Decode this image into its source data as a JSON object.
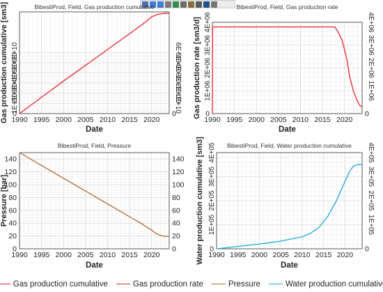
{
  "toolbar": {
    "icons": [
      "cursor-icon",
      "zoom-in-icon",
      "zoom-out-icon",
      "pan-icon",
      "fit-icon",
      "print-icon",
      "table-icon",
      "grid-icon",
      "options-icon",
      "menu-icon"
    ],
    "icon_colors": [
      "#4a6fb5",
      "#3b7dd8",
      "#3b7dd8",
      "#7a7a7a",
      "#2f8f4e",
      "#6b6b6b",
      "#8a6d3b",
      "#5a5a5a",
      "#1f4f8f",
      "#777777"
    ]
  },
  "colors": {
    "gas_cum": "#e8212b",
    "gas_rate": "#e8212b",
    "pressure": "#b5652a",
    "water_cum": "#1aa6dc",
    "grid": "#d9d9d9",
    "axis": "#333333"
  },
  "legend": [
    {
      "label": "Gas production cumulative",
      "color": "#e8212b"
    },
    {
      "label": "Gas production rate",
      "color": "#c0392b"
    },
    {
      "label": "Pressure",
      "color": "#b5652a"
    },
    {
      "label": "Water production cumulative",
      "color": "#1aa6dc"
    }
  ],
  "chart_data": [
    {
      "type": "line",
      "title": "BibestiProd, Field, Gas production cumulative",
      "xlabel": "Date",
      "ylabel": "Gas production cumulative [sm3]",
      "xlim": [
        1990,
        2024
      ],
      "ylim": [
        0,
        100000000000.0
      ],
      "xticks": [
        "1990",
        "1995",
        "2000",
        "2005",
        "2010",
        "2015",
        "2020"
      ],
      "yticks": [
        "0",
        "1E+10",
        "2E+10",
        "3E+10",
        "4E+10",
        "5E+10",
        "6E+10"
      ],
      "grid": true,
      "series": [
        {
          "x": [
            1990,
            1995,
            2000,
            2005,
            2010,
            2015,
            2018,
            2020,
            2021,
            2022,
            2023,
            2024
          ],
          "y": [
            0,
            16000000000.0,
            32000000000.0,
            47500000000.0,
            63000000000.0,
            78500000000.0,
            88000000000.0,
            95000000000.0,
            97000000000.0,
            98000000000.0,
            98500000000.0,
            98700000000.0
          ]
        }
      ]
    },
    {
      "type": "line",
      "title": "BibestiProd, Field, Gas production rate",
      "xlabel": "Date",
      "ylabel": "Gas production rate [sm3/d]",
      "xlim": [
        1990,
        2024
      ],
      "ylim": [
        0,
        4000000.0
      ],
      "xticks": [
        "1990",
        "1995",
        "2000",
        "2005",
        "2010",
        "2015",
        "2020"
      ],
      "yticks": [
        "0",
        "1E+06",
        "2E+06",
        "3E+06",
        "4E+06"
      ],
      "grid": true,
      "series": [
        {
          "x": [
            1990,
            1990.05,
            2017.8,
            2018.5,
            2019.5,
            2020.5,
            2021.2,
            2022,
            2022.8,
            2023.5,
            2024
          ],
          "y": [
            0,
            3800000.0,
            3800000.0,
            3600000.0,
            3200000.0,
            2400000.0,
            1600000.0,
            1000000.0,
            600000.0,
            350000.0,
            300000.0
          ]
        }
      ]
    },
    {
      "type": "line",
      "title": "BibestiProd, Field, Pressure",
      "xlabel": "Date",
      "ylabel": "Pressure [bar]",
      "xlim": [
        1990,
        2024
      ],
      "ylim": [
        0,
        150
      ],
      "xticks": [
        "1990",
        "1995",
        "2000",
        "2005",
        "2010",
        "2015",
        "2020"
      ],
      "yticks": [
        "0",
        "20",
        "40",
        "60",
        "80",
        "100",
        "120",
        "140"
      ],
      "grid": true,
      "series": [
        {
          "x": [
            1990,
            1995,
            2000,
            2005,
            2010,
            2015,
            2018,
            2020,
            2021,
            2022,
            2023,
            2024
          ],
          "y": [
            150,
            130,
            110,
            90,
            70,
            50,
            38,
            29,
            24,
            21,
            19.5,
            19
          ]
        }
      ]
    },
    {
      "type": "line",
      "title": "BibestiProd, Field, Water production cumulative",
      "xlabel": "Date",
      "ylabel": "Water production cumulative [sm3]",
      "xlim": [
        1990,
        2024
      ],
      "ylim": [
        0,
        400000.0
      ],
      "xticks": [
        "1990",
        "1995",
        "2000",
        "2005",
        "2010",
        "2015",
        "2020"
      ],
      "yticks": [
        "0",
        "1E+05",
        "2E+05",
        "3E+05",
        "4E+05"
      ],
      "grid": true,
      "series": [
        {
          "x": [
            1990,
            1995,
            2000,
            2005,
            2010,
            2012,
            2014,
            2016,
            2018,
            2020,
            2021,
            2022,
            2023,
            2024
          ],
          "y": [
            0,
            10000,
            20000,
            32000,
            50000,
            65000,
            90000,
            135000,
            200000,
            280000,
            320000,
            345000,
            350000,
            352000
          ]
        }
      ]
    }
  ]
}
